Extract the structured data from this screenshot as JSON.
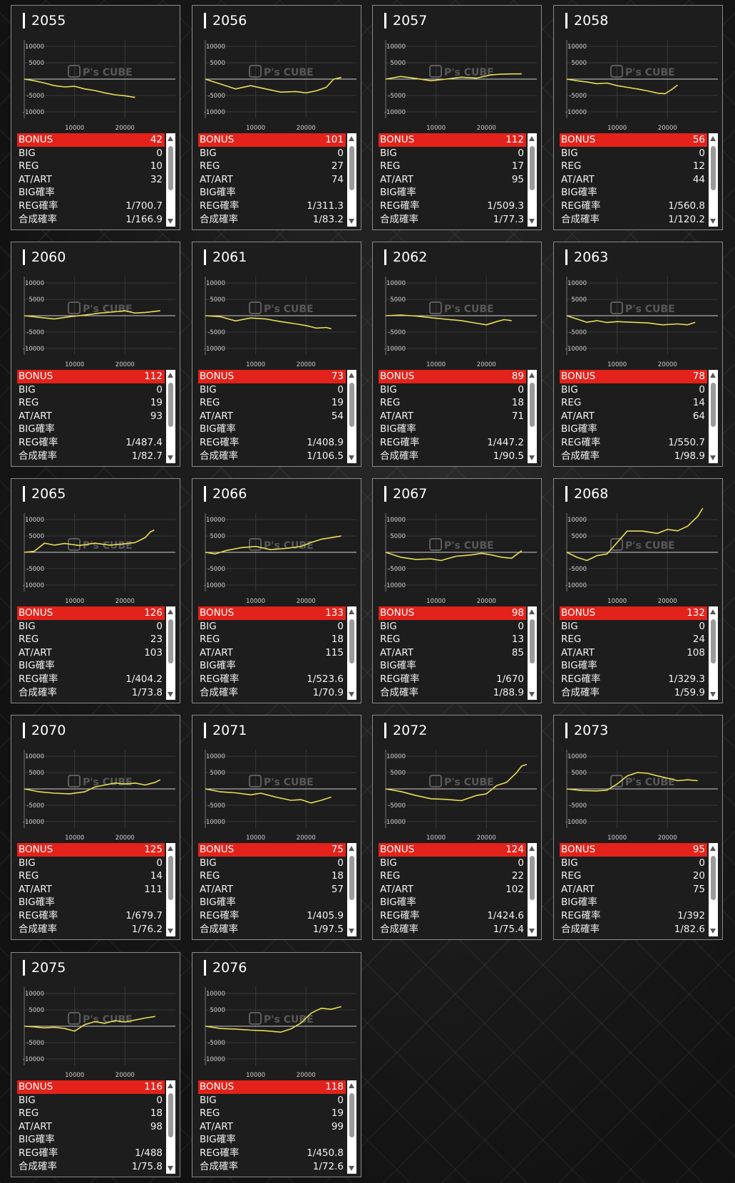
{
  "watermark": {
    "brand": "P's CUBE"
  },
  "chart_axes": {
    "type": "line",
    "y_ticks": [
      "10000",
      "5000",
      "-5000",
      "-10000"
    ],
    "x_ticks": [
      "10000",
      "20000"
    ],
    "xlim": [
      0,
      30000
    ],
    "ylim": [
      -12000,
      12000
    ],
    "grid": true,
    "line_color": "#e9dd55"
  },
  "row_labels": {
    "bonus": "BONUS",
    "big": "BIG",
    "reg": "REG",
    "at": "AT/ART",
    "big_rate": "BIG確率",
    "reg_rate": "REG確率",
    "total_rate": "合成確率"
  },
  "machines": [
    {
      "id": "2055",
      "bonus": "42",
      "big": "0",
      "reg": "10",
      "at": "32",
      "big_rate": "",
      "reg_rate": "1/700.7",
      "total_rate": "1/166.9",
      "series": [
        [
          0,
          0
        ],
        [
          2000,
          -500
        ],
        [
          4000,
          -1200
        ],
        [
          6000,
          -2000
        ],
        [
          8000,
          -2400
        ],
        [
          10000,
          -2200
        ],
        [
          12000,
          -3000
        ],
        [
          14000,
          -3500
        ],
        [
          16000,
          -4200
        ],
        [
          18000,
          -4800
        ],
        [
          20000,
          -5100
        ],
        [
          22000,
          -5600
        ]
      ]
    },
    {
      "id": "2056",
      "bonus": "101",
      "big": "0",
      "reg": "27",
      "at": "74",
      "big_rate": "",
      "reg_rate": "1/311.3",
      "total_rate": "1/83.2",
      "series": [
        [
          0,
          0
        ],
        [
          3000,
          -1500
        ],
        [
          6000,
          -3000
        ],
        [
          9000,
          -2000
        ],
        [
          12000,
          -3000
        ],
        [
          15000,
          -4000
        ],
        [
          18000,
          -3800
        ],
        [
          20000,
          -4200
        ],
        [
          22000,
          -3600
        ],
        [
          24000,
          -2500
        ],
        [
          25500,
          0
        ],
        [
          27000,
          500
        ]
      ]
    },
    {
      "id": "2057",
      "bonus": "112",
      "big": "0",
      "reg": "17",
      "at": "95",
      "big_rate": "",
      "reg_rate": "1/509.3",
      "total_rate": "1/77.3",
      "series": [
        [
          0,
          0
        ],
        [
          3000,
          800
        ],
        [
          6000,
          200
        ],
        [
          9000,
          -500
        ],
        [
          12000,
          0
        ],
        [
          15000,
          600
        ],
        [
          18000,
          300
        ],
        [
          21000,
          1300
        ],
        [
          23000,
          1500
        ],
        [
          25000,
          1600
        ],
        [
          27000,
          1600
        ]
      ]
    },
    {
      "id": "2058",
      "bonus": "56",
      "big": "0",
      "reg": "12",
      "at": "44",
      "big_rate": "",
      "reg_rate": "1/560.8",
      "total_rate": "1/120.2",
      "series": [
        [
          0,
          0
        ],
        [
          2000,
          -500
        ],
        [
          4000,
          -900
        ],
        [
          6000,
          -1400
        ],
        [
          8000,
          -1200
        ],
        [
          10000,
          -2000
        ],
        [
          12000,
          -2500
        ],
        [
          14000,
          -3000
        ],
        [
          16000,
          -3600
        ],
        [
          18000,
          -4300
        ],
        [
          19500,
          -4500
        ],
        [
          21000,
          -3000
        ],
        [
          22000,
          -1800
        ]
      ]
    },
    {
      "id": "2060",
      "bonus": "112",
      "big": "0",
      "reg": "19",
      "at": "93",
      "big_rate": "",
      "reg_rate": "1/487.4",
      "total_rate": "1/82.7",
      "series": [
        [
          0,
          0
        ],
        [
          3000,
          -500
        ],
        [
          6000,
          -1000
        ],
        [
          9000,
          -300
        ],
        [
          12000,
          200
        ],
        [
          15000,
          800
        ],
        [
          18000,
          1200
        ],
        [
          20000,
          1500
        ],
        [
          22000,
          800
        ],
        [
          24000,
          1000
        ],
        [
          27000,
          1500
        ]
      ]
    },
    {
      "id": "2061",
      "bonus": "73",
      "big": "0",
      "reg": "19",
      "at": "54",
      "big_rate": "",
      "reg_rate": "1/408.9",
      "total_rate": "1/106.5",
      "series": [
        [
          0,
          0
        ],
        [
          3000,
          -300
        ],
        [
          6000,
          -1600
        ],
        [
          9000,
          -700
        ],
        [
          12000,
          -1000
        ],
        [
          15000,
          -1800
        ],
        [
          18000,
          -2500
        ],
        [
          20000,
          -3000
        ],
        [
          22000,
          -3800
        ],
        [
          24000,
          -3600
        ],
        [
          25000,
          -4000
        ]
      ]
    },
    {
      "id": "2062",
      "bonus": "89",
      "big": "0",
      "reg": "18",
      "at": "71",
      "big_rate": "",
      "reg_rate": "1/447.2",
      "total_rate": "1/90.5",
      "series": [
        [
          0,
          0
        ],
        [
          3000,
          200
        ],
        [
          6000,
          -100
        ],
        [
          9000,
          -600
        ],
        [
          12000,
          -1100
        ],
        [
          15000,
          -1500
        ],
        [
          18000,
          -2300
        ],
        [
          20000,
          -2800
        ],
        [
          22000,
          -1800
        ],
        [
          23500,
          -1200
        ],
        [
          25000,
          -1500
        ]
      ]
    },
    {
      "id": "2063",
      "bonus": "78",
      "big": "0",
      "reg": "14",
      "at": "64",
      "big_rate": "",
      "reg_rate": "1/550.7",
      "total_rate": "1/98.9",
      "series": [
        [
          0,
          0
        ],
        [
          2000,
          -1000
        ],
        [
          4000,
          -2000
        ],
        [
          6000,
          -1500
        ],
        [
          8000,
          -2100
        ],
        [
          10000,
          -1800
        ],
        [
          13000,
          -2000
        ],
        [
          16000,
          -2200
        ],
        [
          19000,
          -2800
        ],
        [
          22000,
          -2500
        ],
        [
          24000,
          -2800
        ],
        [
          25500,
          -2000
        ]
      ]
    },
    {
      "id": "2065",
      "bonus": "126",
      "big": "0",
      "reg": "23",
      "at": "103",
      "big_rate": "",
      "reg_rate": "1/404.2",
      "total_rate": "1/73.8",
      "series": [
        [
          0,
          0
        ],
        [
          2000,
          300
        ],
        [
          4000,
          2800
        ],
        [
          6000,
          2200
        ],
        [
          8000,
          2700
        ],
        [
          11000,
          2100
        ],
        [
          14000,
          2800
        ],
        [
          17000,
          2200
        ],
        [
          20000,
          2600
        ],
        [
          22000,
          3000
        ],
        [
          24000,
          4500
        ],
        [
          25000,
          6200
        ],
        [
          25800,
          6800
        ]
      ]
    },
    {
      "id": "2066",
      "bonus": "133",
      "big": "0",
      "reg": "18",
      "at": "115",
      "big_rate": "",
      "reg_rate": "1/523.6",
      "total_rate": "1/70.9",
      "series": [
        [
          0,
          0
        ],
        [
          2000,
          -500
        ],
        [
          4000,
          500
        ],
        [
          7000,
          1400
        ],
        [
          10000,
          1800
        ],
        [
          13000,
          800
        ],
        [
          16000,
          1200
        ],
        [
          19000,
          1800
        ],
        [
          21000,
          3000
        ],
        [
          23000,
          4000
        ],
        [
          25000,
          4500
        ],
        [
          27000,
          5000
        ]
      ]
    },
    {
      "id": "2067",
      "bonus": "98",
      "big": "0",
      "reg": "13",
      "at": "85",
      "big_rate": "",
      "reg_rate": "1/670",
      "total_rate": "1/88.9",
      "series": [
        [
          0,
          0
        ],
        [
          3000,
          -1500
        ],
        [
          6000,
          -2200
        ],
        [
          9000,
          -2000
        ],
        [
          11000,
          -2500
        ],
        [
          14000,
          -1200
        ],
        [
          17000,
          -800
        ],
        [
          19000,
          -300
        ],
        [
          21000,
          -800
        ],
        [
          23000,
          -1500
        ],
        [
          25000,
          -1800
        ],
        [
          27000,
          500
        ]
      ]
    },
    {
      "id": "2068",
      "bonus": "132",
      "big": "0",
      "reg": "24",
      "at": "108",
      "big_rate": "",
      "reg_rate": "1/329.3",
      "total_rate": "1/59.9",
      "series": [
        [
          0,
          0
        ],
        [
          2000,
          -1500
        ],
        [
          4000,
          -2500
        ],
        [
          6000,
          -1000
        ],
        [
          8000,
          -500
        ],
        [
          10000,
          3000
        ],
        [
          12000,
          6500
        ],
        [
          15000,
          6500
        ],
        [
          18000,
          5800
        ],
        [
          20000,
          7000
        ],
        [
          22000,
          6600
        ],
        [
          24000,
          8000
        ],
        [
          26000,
          11000
        ],
        [
          27000,
          13500
        ]
      ]
    },
    {
      "id": "2070",
      "bonus": "125",
      "big": "0",
      "reg": "14",
      "at": "111",
      "big_rate": "",
      "reg_rate": "1/679.7",
      "total_rate": "1/76.2",
      "series": [
        [
          0,
          0
        ],
        [
          3000,
          -900
        ],
        [
          6000,
          -1300
        ],
        [
          9000,
          -1500
        ],
        [
          12000,
          -900
        ],
        [
          14000,
          600
        ],
        [
          16000,
          1200
        ],
        [
          18000,
          1800
        ],
        [
          20000,
          1500
        ],
        [
          22000,
          1800
        ],
        [
          24000,
          1200
        ],
        [
          26000,
          2000
        ],
        [
          27000,
          2800
        ]
      ]
    },
    {
      "id": "2071",
      "bonus": "75",
      "big": "0",
      "reg": "18",
      "at": "57",
      "big_rate": "",
      "reg_rate": "1/405.9",
      "total_rate": "1/97.5",
      "series": [
        [
          0,
          0
        ],
        [
          3000,
          -900
        ],
        [
          6000,
          -1200
        ],
        [
          9000,
          -1800
        ],
        [
          11000,
          -1300
        ],
        [
          14000,
          -2500
        ],
        [
          17000,
          -3500
        ],
        [
          19000,
          -3300
        ],
        [
          21000,
          -4300
        ],
        [
          23000,
          -3500
        ],
        [
          25000,
          -2500
        ]
      ]
    },
    {
      "id": "2072",
      "bonus": "124",
      "big": "0",
      "reg": "22",
      "at": "102",
      "big_rate": "",
      "reg_rate": "1/424.6",
      "total_rate": "1/75.4",
      "series": [
        [
          0,
          0
        ],
        [
          3000,
          -800
        ],
        [
          6000,
          -2000
        ],
        [
          9000,
          -3000
        ],
        [
          12000,
          -3200
        ],
        [
          15000,
          -3600
        ],
        [
          18000,
          -2000
        ],
        [
          20000,
          -1500
        ],
        [
          22000,
          1000
        ],
        [
          24000,
          2000
        ],
        [
          26000,
          5000
        ],
        [
          27000,
          7000
        ],
        [
          28000,
          7500
        ]
      ]
    },
    {
      "id": "2073",
      "bonus": "95",
      "big": "0",
      "reg": "20",
      "at": "75",
      "big_rate": "",
      "reg_rate": "1/392",
      "total_rate": "1/82.6",
      "series": [
        [
          0,
          0
        ],
        [
          3000,
          -500
        ],
        [
          6000,
          -600
        ],
        [
          8000,
          -400
        ],
        [
          10000,
          1500
        ],
        [
          12000,
          4000
        ],
        [
          14000,
          5000
        ],
        [
          16000,
          4800
        ],
        [
          18000,
          4000
        ],
        [
          20000,
          3300
        ],
        [
          22000,
          2500
        ],
        [
          24000,
          2800
        ],
        [
          26000,
          2500
        ]
      ]
    },
    {
      "id": "2075",
      "bonus": "116",
      "big": "0",
      "reg": "18",
      "at": "98",
      "big_rate": "",
      "reg_rate": "1/488",
      "total_rate": "1/75.8",
      "series": [
        [
          0,
          0
        ],
        [
          2000,
          -200
        ],
        [
          4000,
          -500
        ],
        [
          6000,
          -300
        ],
        [
          8000,
          -700
        ],
        [
          10000,
          -1500
        ],
        [
          12000,
          500
        ],
        [
          14000,
          1400
        ],
        [
          16000,
          900
        ],
        [
          18000,
          1700
        ],
        [
          20000,
          1300
        ],
        [
          22000,
          1900
        ],
        [
          24000,
          2500
        ],
        [
          26000,
          3000
        ]
      ]
    },
    {
      "id": "2076",
      "bonus": "118",
      "big": "0",
      "reg": "19",
      "at": "99",
      "big_rate": "",
      "reg_rate": "1/450.8",
      "total_rate": "1/72.6",
      "series": [
        [
          0,
          0
        ],
        [
          3000,
          -700
        ],
        [
          6000,
          -900
        ],
        [
          9000,
          -1200
        ],
        [
          12000,
          -1400
        ],
        [
          15000,
          -1800
        ],
        [
          17000,
          -800
        ],
        [
          19000,
          1000
        ],
        [
          21000,
          4000
        ],
        [
          23000,
          5500
        ],
        [
          25000,
          5200
        ],
        [
          27000,
          6000
        ]
      ]
    }
  ]
}
